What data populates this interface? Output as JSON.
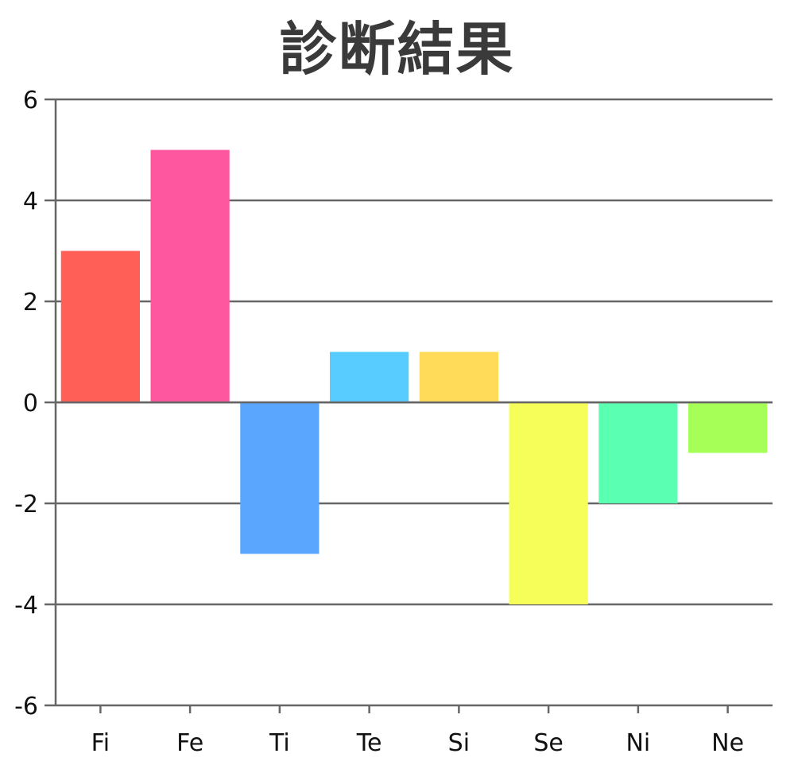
{
  "chart_data": {
    "type": "bar",
    "title": "診断結果",
    "xlabel": "",
    "ylabel": "",
    "categories": [
      "Fi",
      "Fe",
      "Ti",
      "Te",
      "Si",
      "Se",
      "Ni",
      "Ne"
    ],
    "values": [
      3,
      5,
      -3,
      1,
      1,
      -4,
      -2,
      -1
    ],
    "bar_colors": [
      "#ff5f57",
      "#ff579f",
      "#5aa6ff",
      "#58ccff",
      "#ffdb59",
      "#f6ff59",
      "#5bffb2",
      "#a6ff57"
    ],
    "ylim": [
      -6,
      6
    ],
    "yticks": [
      6,
      4,
      2,
      0,
      -2,
      -4,
      -6
    ],
    "grid": true,
    "legend": "none"
  },
  "colors": {
    "axis": "#666666",
    "grid": "#666666",
    "title": "#3a3a3a",
    "text": "#111111"
  }
}
